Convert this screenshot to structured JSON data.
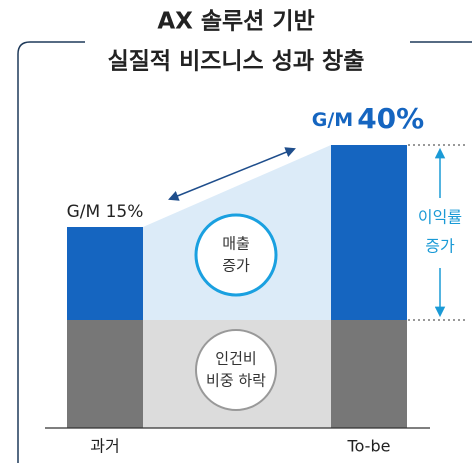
{
  "title": {
    "lines": [
      "AX 솔루션 기반",
      "실질적 비즈니스 성과 창출"
    ]
  },
  "before": {
    "category": "과거",
    "label": "G/M 15%"
  },
  "after": {
    "category": "To-be",
    "label_prefix": "G/M",
    "label_value": "40%"
  },
  "callouts": {
    "revenue": [
      "매출",
      "증가"
    ],
    "labor": [
      "인건비",
      "비중 하락"
    ],
    "margin": [
      "이익률",
      "증가"
    ]
  }
}
